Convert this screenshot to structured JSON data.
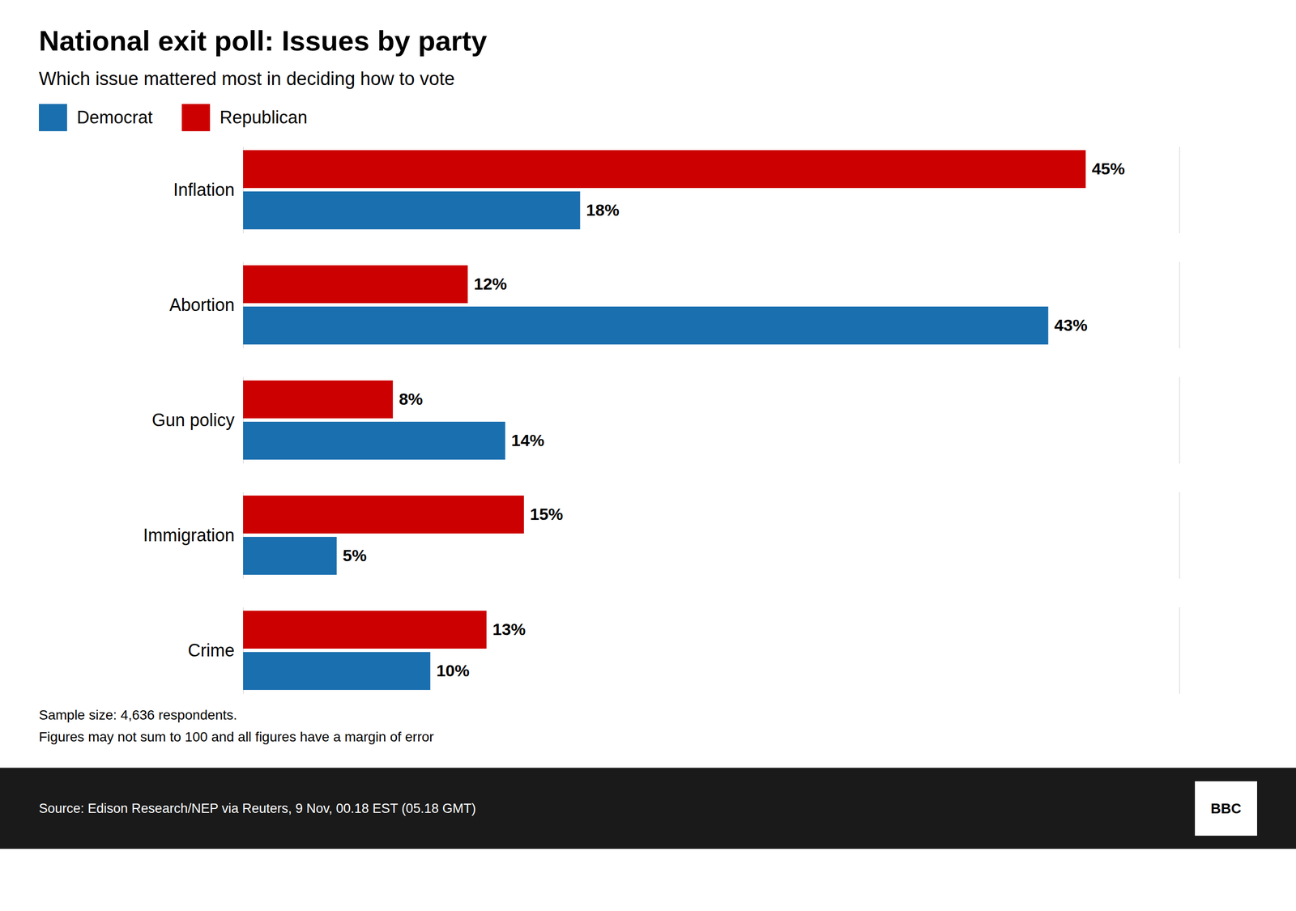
{
  "chart_data": {
    "type": "bar",
    "orientation": "horizontal",
    "title": "National exit poll: Issues by party",
    "subtitle": "Which issue mattered most in deciding how to vote",
    "categories": [
      "Inflation",
      "Abortion",
      "Gun policy",
      "Immigration",
      "Crime"
    ],
    "series": [
      {
        "name": "Democrat",
        "color": "#1a6faf",
        "values": [
          18,
          43,
          14,
          5,
          10
        ],
        "value_labels": [
          "18%",
          "43%",
          "14%",
          "5%",
          "10%"
        ]
      },
      {
        "name": "Republican",
        "color": "#cc0000",
        "values": [
          45,
          12,
          8,
          15,
          13
        ],
        "value_labels": [
          "45%",
          "12%",
          "8%",
          "15%",
          "13%"
        ]
      }
    ],
    "xlim": [
      0,
      50
    ],
    "tick_labels": "y",
    "grid": false,
    "legend": "top-left",
    "data_labels": true,
    "footnotes": [
      "Sample size: 4,636 respondents.",
      "Figures may not sum to 100 and all figures have a margin of error"
    ],
    "source": "Source: Edison Research/NEP via Reuters, 9 Nov, 00.18 EST (05.18 GMT)",
    "logo": "BBC"
  }
}
